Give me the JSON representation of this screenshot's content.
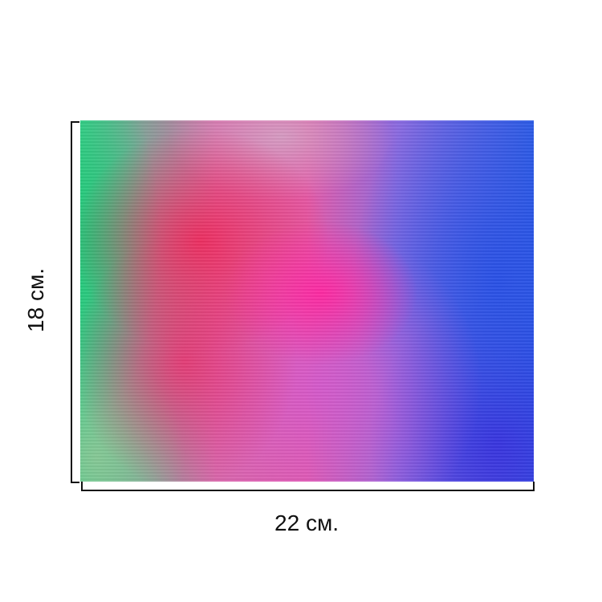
{
  "product": {
    "image": "abstract-colorful-burst-print",
    "colors": {
      "left": "#3ccf8a",
      "center": "#e83a9a",
      "right": "#2d5ee6"
    }
  },
  "dimensions": {
    "height_label": "18 см.",
    "width_label": "22 см."
  }
}
